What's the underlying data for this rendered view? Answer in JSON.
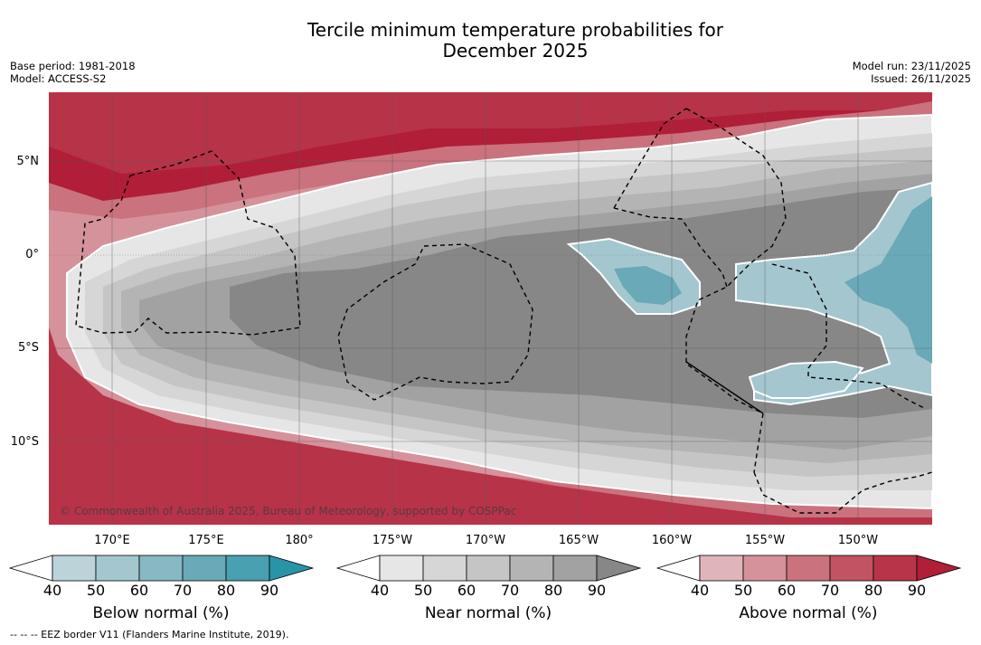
{
  "title": {
    "line1": "Tercile minimum temperature probabilities for",
    "line2": "December 2025"
  },
  "meta": {
    "base_period": "Base period: 1981-2018",
    "model": "Model: ACCESS-S2",
    "model_run": "Model run: 23/11/2025",
    "issued": "Issued: 26/11/2025"
  },
  "map": {
    "lat_labels": [
      "5°N",
      "0°",
      "5°S",
      "10°S"
    ],
    "lon_labels": [
      "170°E",
      "175°E",
      "180°",
      "175°W",
      "170°W",
      "165°W",
      "160°W",
      "155°W",
      "150°W"
    ],
    "copyright": "© Commonwealth of Australia 2025, Bureau of Meteorology, supported by COSPPac"
  },
  "colorbars": [
    {
      "label": "Below normal (%)",
      "ticks": [
        "40",
        "50",
        "60",
        "70",
        "80",
        "90"
      ],
      "colors": [
        "#ffffff",
        "#bcd3da",
        "#a4c7cf",
        "#87b8c4",
        "#6aa9b7",
        "#48a0b0",
        "#2894a6"
      ]
    },
    {
      "label": "Near normal (%)",
      "ticks": [
        "40",
        "50",
        "60",
        "70",
        "80",
        "90"
      ],
      "colors": [
        "#ffffff",
        "#e6e6e6",
        "#d6d6d6",
        "#c5c5c5",
        "#b4b4b4",
        "#a2a2a2",
        "#878787"
      ]
    },
    {
      "label": "Above normal (%)",
      "ticks": [
        "40",
        "50",
        "60",
        "70",
        "80",
        "90"
      ],
      "colors": [
        "#ffffff",
        "#e0b5ba",
        "#d5929a",
        "#ca727d",
        "#c25362",
        "#b83549",
        "#b01e37"
      ]
    }
  ],
  "footer": {
    "eez": "--  --  -- EEZ border V11 (Flanders Marine Institute, 2019)."
  }
}
